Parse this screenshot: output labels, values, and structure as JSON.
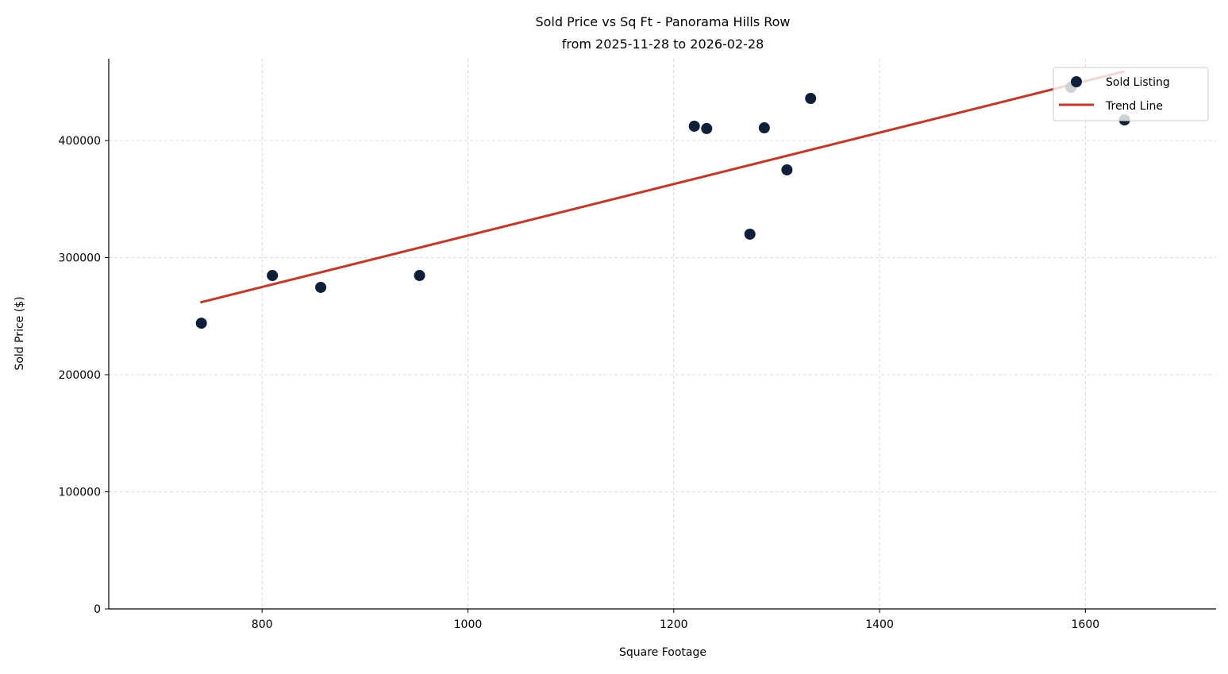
{
  "chart_data": {
    "type": "scatter",
    "title": "Sold Price vs Sq Ft - Panorama Hills Row",
    "subtitle": "from 2025-11-28 to 2026-02-28",
    "xlabel": "Square Footage",
    "ylabel": "Sold Price ($)",
    "xlim": [
      651,
      1727
    ],
    "ylim": [
      0,
      469800
    ],
    "xticks": [
      800,
      1000,
      1200,
      1400,
      1600
    ],
    "yticks": [
      0,
      100000,
      200000,
      300000,
      400000
    ],
    "grid": true,
    "legend_placement": "top-right",
    "series": [
      {
        "name": "Sold Listing",
        "type": "scatter",
        "color": "#0d1f3a",
        "points": [
          [
            741,
            244000
          ],
          [
            810,
            284700
          ],
          [
            857,
            274600
          ],
          [
            953,
            284700
          ],
          [
            1220,
            412200
          ],
          [
            1232,
            410200
          ],
          [
            1274,
            320000
          ],
          [
            1288,
            410800
          ],
          [
            1310,
            374900
          ],
          [
            1333,
            435900
          ],
          [
            1586,
            445400
          ],
          [
            1638,
            417600
          ]
        ]
      },
      {
        "name": "Trend Line",
        "type": "line",
        "color": "#c0392b",
        "points": [
          [
            740,
            261700
          ],
          [
            1638,
            459000
          ]
        ]
      }
    ]
  }
}
